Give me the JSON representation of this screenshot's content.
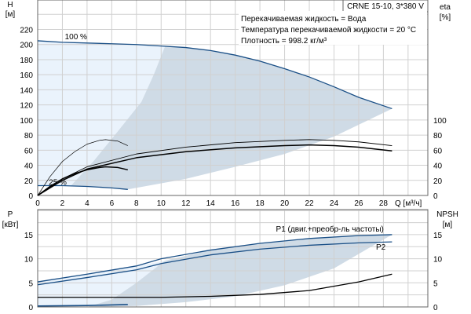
{
  "colors": {
    "grid": "#d0d0d0",
    "curve_blue": "#1a4f86",
    "curve_black": "#000000",
    "light_fill": "#eaf3fc",
    "dark_fill": "#cfdbe6"
  },
  "chart_data": [
    {
      "type": "line",
      "title": "CRNE 15-10, 3*380 V",
      "info": [
        "Перекачиваемая жидкость = Вода",
        "Температура перекачиваемой жидкости = 20 °C",
        "Плотность = 998.2 кг/м³"
      ],
      "xlabel": "Q [м³/ч]",
      "ylabel": "H",
      "yunit": "[м]",
      "y2label": "eta",
      "y2unit": "[%]",
      "xlim": [
        0,
        31.6
      ],
      "ylim": [
        0,
        259
      ],
      "grid": true,
      "xticks": [
        0,
        2,
        4,
        6,
        8,
        10,
        12,
        14,
        16,
        18,
        20,
        22,
        24,
        26,
        28
      ],
      "yticks": [
        0,
        20,
        40,
        60,
        80,
        100,
        120,
        140,
        160,
        180,
        200,
        220
      ],
      "y2ticks": [
        0,
        20,
        40,
        60,
        80,
        100
      ],
      "annotations": [
        {
          "text": "100 %",
          "x": 2.2,
          "y": 207
        },
        {
          "text": "25 %",
          "x": 0.9,
          "y": 14
        }
      ],
      "series": [
        {
          "name": "H 100 %",
          "color": "#1a4f86",
          "width": 1.3,
          "x": [
            0,
            2,
            4,
            6,
            8,
            10,
            12,
            14,
            16,
            18,
            20,
            22,
            24,
            26,
            28.7
          ],
          "y": [
            205,
            203,
            202,
            201,
            200,
            198,
            196,
            192,
            186,
            178,
            168,
            157,
            144,
            130,
            115
          ]
        },
        {
          "name": "H 25 %",
          "color": "#1a4f86",
          "width": 1.3,
          "x": [
            0,
            2,
            4,
            6,
            7.3
          ],
          "y": [
            13,
            13,
            12,
            10,
            8
          ]
        },
        {
          "name": "eta 100 % upper",
          "color": "#000",
          "width": 0.9,
          "x": [
            0,
            2,
            4,
            8,
            12,
            16,
            20,
            22,
            24,
            26,
            28.7
          ],
          "y": [
            0,
            22,
            38,
            55,
            64,
            70,
            73,
            74,
            73,
            71,
            66
          ]
        },
        {
          "name": "eta 100 % lower",
          "color": "#000",
          "width": 1.5,
          "x": [
            0,
            2,
            4,
            8,
            12,
            16,
            20,
            22,
            24,
            26,
            28.7
          ],
          "y": [
            0,
            20,
            35,
            50,
            58,
            63,
            66,
            67,
            66,
            64,
            59
          ]
        },
        {
          "name": "eta 25 % upper",
          "color": "#000",
          "width": 0.7,
          "x": [
            0,
            1,
            2,
            3,
            4,
            5,
            5.5,
            6.5,
            7.3
          ],
          "y": [
            0,
            25,
            45,
            58,
            68,
            73,
            74,
            72,
            66
          ]
        },
        {
          "name": "eta 25 % lower",
          "color": "#000",
          "width": 1.5,
          "x": [
            0,
            1,
            2,
            3,
            4,
            5,
            5.5,
            6.5,
            7.3
          ],
          "y": [
            0,
            12,
            22,
            29,
            34,
            37,
            38,
            37,
            34
          ]
        }
      ],
      "regions": [
        {
          "name": "light",
          "color": "#eaf3fc",
          "x": [
            0,
            0,
            2,
            4,
            6,
            8,
            10.3,
            9.4,
            8.4,
            6.2,
            4.5,
            2.7,
            2,
            0
          ],
          "y": [
            13,
            205,
            203,
            202,
            201,
            200,
            197,
            160,
            124,
            79,
            45,
            13,
            13,
            13
          ]
        },
        {
          "name": "dark",
          "color": "#cfdbe6",
          "x": [
            2.7,
            4.5,
            6.2,
            8.4,
            9.4,
            10.3,
            12,
            14,
            16,
            18,
            20,
            22,
            24,
            26,
            28.7,
            24,
            20,
            16,
            12,
            7.3,
            6,
            4
          ],
          "y": [
            13,
            45,
            79,
            124,
            160,
            197,
            196,
            192,
            186,
            178,
            168,
            157,
            144,
            130,
            115,
            78,
            55,
            38,
            22,
            8,
            10,
            12
          ]
        }
      ]
    },
    {
      "type": "line",
      "ylabel": "P",
      "yunit": "[кВт]",
      "y2label": "NPSH",
      "y2unit": "[м]",
      "xlim": [
        0,
        31.6
      ],
      "ylim": [
        0,
        20.2
      ],
      "grid": true,
      "yticks": [
        0,
        5,
        10,
        15
      ],
      "y2ticks": [
        0,
        5,
        10,
        15
      ],
      "annotations": [
        {
          "text": "P1 (двиг.+преобр-ль частоты)",
          "x": 19.3,
          "y": 15.6
        },
        {
          "text": "P2",
          "x": 27.4,
          "y": 11.9
        }
      ],
      "series": [
        {
          "name": "P1",
          "color": "#1a4f86",
          "width": 1.3,
          "x": [
            0,
            4,
            8,
            10,
            14,
            18,
            22,
            26,
            28.7
          ],
          "y": [
            5.2,
            6.8,
            8.5,
            10,
            11.8,
            13.2,
            14.2,
            14.8,
            15
          ]
        },
        {
          "name": "P2",
          "color": "#1a4f86",
          "width": 1.3,
          "x": [
            0,
            4,
            8,
            10,
            14,
            18,
            22,
            26,
            28.7
          ],
          "y": [
            4.6,
            6.1,
            7.7,
            9,
            10.8,
            12,
            12.8,
            13.3,
            13.5
          ]
        },
        {
          "name": "NPSH",
          "color": "#000",
          "width": 1.3,
          "x": [
            0,
            10,
            14,
            18,
            22,
            26,
            28.7
          ],
          "y": [
            2,
            2,
            2.2,
            2.6,
            3.4,
            5.2,
            6.8
          ]
        },
        {
          "name": "P 25 %",
          "color": "#1a4f86",
          "width": 1.6,
          "x": [
            0,
            4,
            7.3
          ],
          "y": [
            0.2,
            0.3,
            0.5
          ]
        }
      ],
      "regions": [
        {
          "name": "light",
          "color": "#eaf3fc",
          "x": [
            0,
            0,
            4,
            8,
            10.3,
            9,
            8,
            6,
            4
          ],
          "y": [
            0,
            5.2,
            6.8,
            8.5,
            9.6,
            7,
            5,
            1.5,
            0
          ]
        },
        {
          "name": "dark",
          "color": "#cfdbe6",
          "x": [
            4,
            6,
            8,
            9,
            10.3,
            14,
            18,
            22,
            26,
            28.7,
            26,
            24,
            20,
            16,
            12,
            8
          ],
          "y": [
            0,
            1.5,
            5,
            7,
            9.6,
            11.8,
            13.2,
            14.2,
            14.8,
            15,
            11,
            8,
            4.5,
            2.2,
            1,
            0.2
          ]
        }
      ]
    }
  ]
}
